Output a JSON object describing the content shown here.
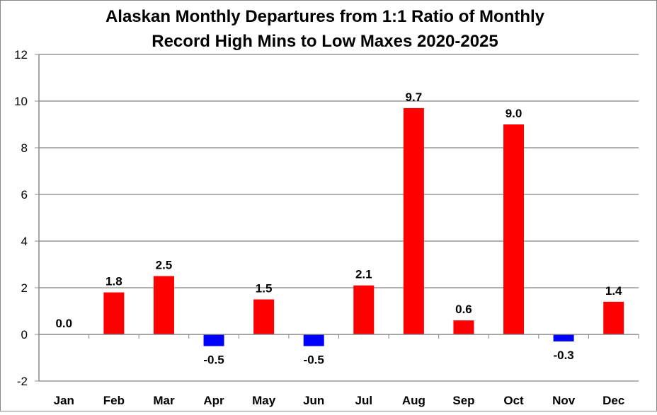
{
  "chart_data": {
    "type": "bar",
    "title": "Alaskan Monthly Departures from 1:1 Ratio of Monthly",
    "subtitle": "Record High Mins to Low Maxes 2020-2025",
    "xlabel": "",
    "ylabel": "",
    "ylim": [
      -2,
      12
    ],
    "yticks": [
      -2,
      0,
      2,
      4,
      6,
      8,
      10,
      12
    ],
    "grid": true,
    "legend": "none",
    "categories": [
      "Jan",
      "Feb",
      "Mar",
      "Apr",
      "May",
      "Jun",
      "Jul",
      "Aug",
      "Sep",
      "Oct",
      "Nov",
      "Dec"
    ],
    "values": [
      0.0,
      1.8,
      2.5,
      -0.5,
      1.5,
      -0.5,
      2.1,
      9.7,
      0.6,
      9.0,
      -0.3,
      1.4
    ],
    "data_labels": [
      "0.0",
      "1.8",
      "2.5",
      "-0.5",
      "1.5",
      "-0.5",
      "2.1",
      "9.7",
      "0.6",
      "9.0",
      "-0.3",
      "1.4"
    ],
    "colors": {
      "positive": "#ff0000",
      "negative": "#0000ff",
      "gridline": "#999999",
      "axis": "#888888",
      "text": "#000000",
      "border": "#888888"
    }
  }
}
